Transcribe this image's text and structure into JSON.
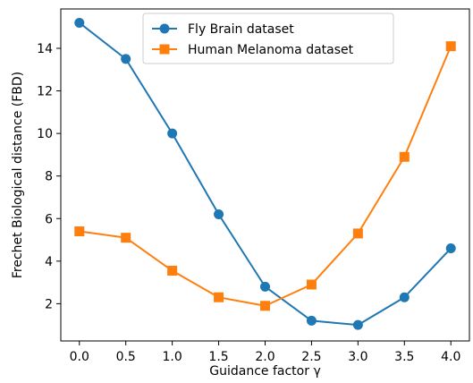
{
  "chart_data": {
    "type": "line",
    "xlabel": "Guidance factor γ",
    "ylabel": "Frechet Biological distance (FBD)",
    "x": [
      0.0,
      0.5,
      1.0,
      1.5,
      2.0,
      2.5,
      3.0,
      3.5,
      4.0
    ],
    "xlim": [
      -0.2,
      4.2
    ],
    "ylim": [
      0.25,
      15.85
    ],
    "xticks": [
      "0.0",
      "0.5",
      "1.0",
      "1.5",
      "2.0",
      "2.5",
      "3.0",
      "3.5",
      "4.0"
    ],
    "yticks": [
      "2",
      "4",
      "6",
      "8",
      "10",
      "12",
      "14"
    ],
    "grid": false,
    "legend_position": "top-center",
    "series": [
      {
        "name": "Fly Brain dataset",
        "color": "#1f77b4",
        "marker": "circle",
        "values": [
          15.2,
          13.5,
          10.0,
          6.2,
          2.8,
          1.2,
          1.0,
          2.3,
          4.6
        ]
      },
      {
        "name": "Human Melanoma dataset",
        "color": "#ff7f0e",
        "marker": "square",
        "values": [
          5.4,
          5.1,
          3.55,
          2.3,
          1.9,
          2.9,
          5.3,
          8.9,
          14.1
        ]
      }
    ]
  }
}
